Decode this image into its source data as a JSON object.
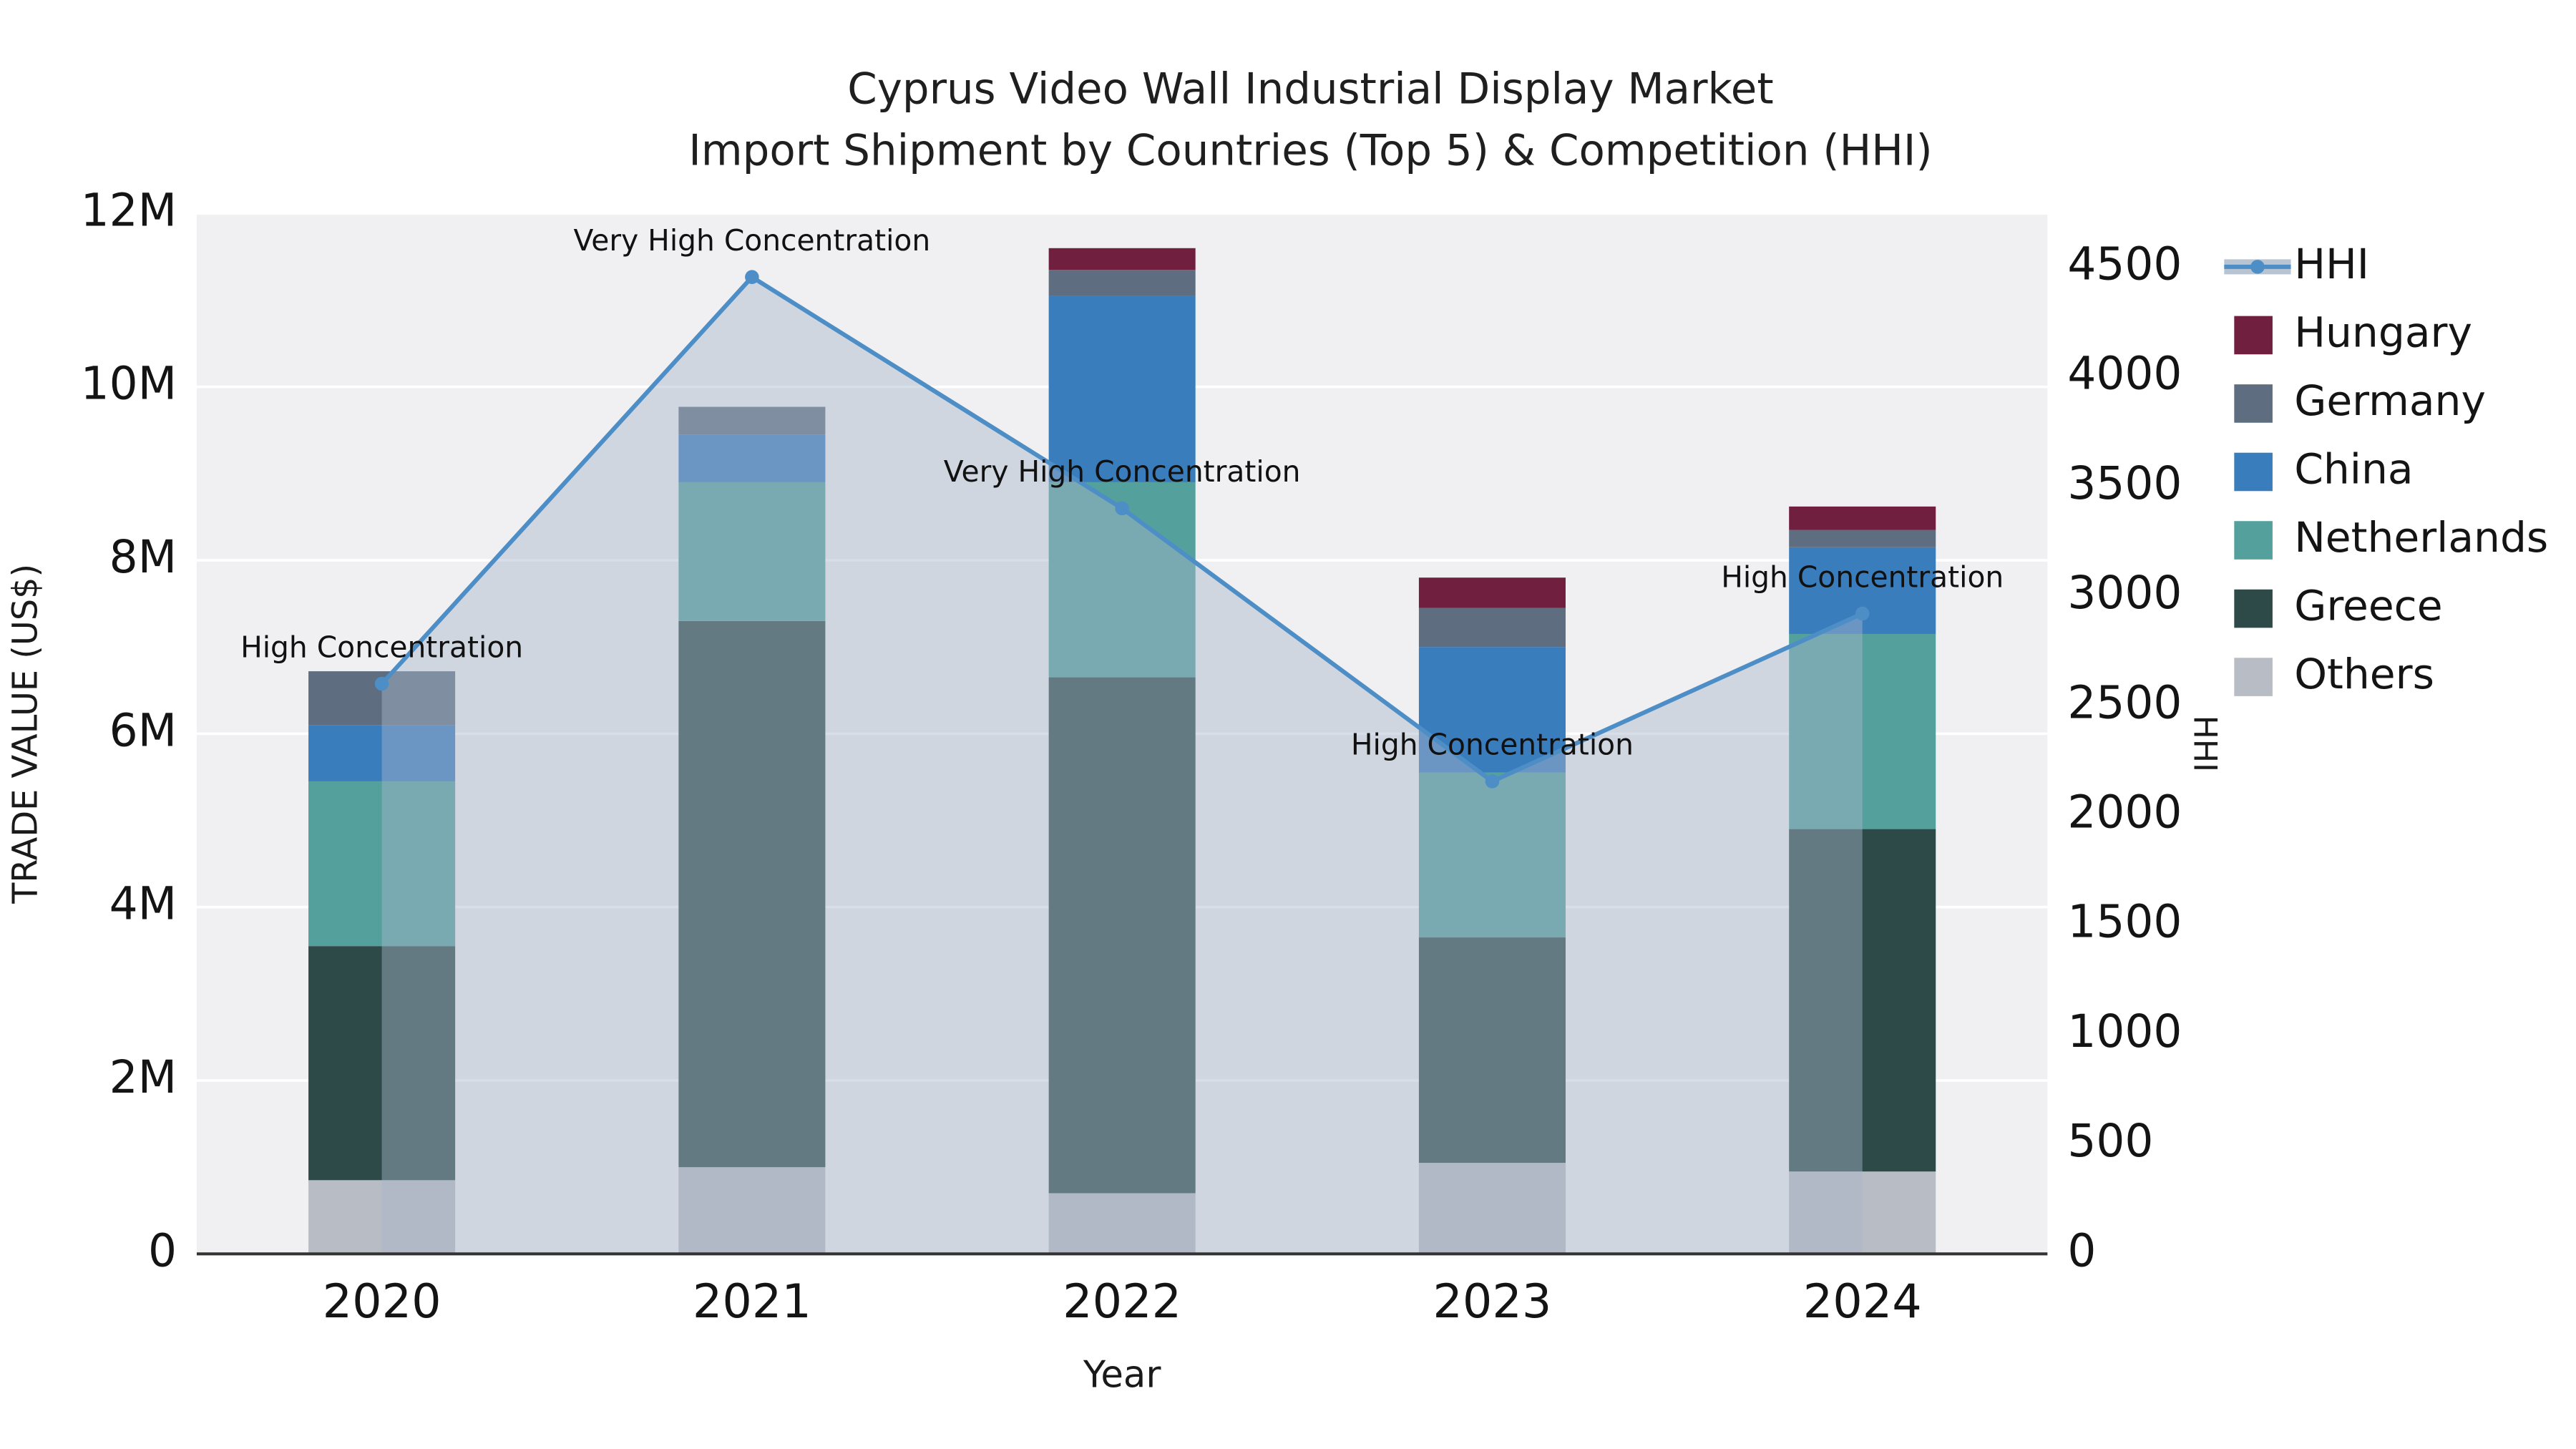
{
  "chart_data": {
    "type": "stacked-bar+line",
    "title": "Cyprus Video Wall Industrial Display Market",
    "subtitle": "Import Shipment by Countries (Top 5) & Competition (HHI)",
    "xlabel": "Year",
    "ylabel_left": "TRADE VALUE (US$)",
    "ylabel_right": "HHI",
    "categories": [
      "2020",
      "2021",
      "2022",
      "2023",
      "2024"
    ],
    "series": [
      {
        "name": "Others",
        "color": "#b8bcc4",
        "values": [
          850000,
          1000000,
          700000,
          1050000,
          950000
        ]
      },
      {
        "name": "Greece",
        "color": "#2d4a49",
        "values": [
          2700000,
          6300000,
          5950000,
          2600000,
          3950000
        ]
      },
      {
        "name": "Netherlands",
        "color": "#53a09d",
        "values": [
          1900000,
          1600000,
          2250000,
          1900000,
          2250000
        ]
      },
      {
        "name": "China",
        "color": "#3a7dbd",
        "values": [
          650000,
          550000,
          2150000,
          1450000,
          1000000
        ]
      },
      {
        "name": "Germany",
        "color": "#5e6e80",
        "values": [
          620000,
          320000,
          300000,
          450000,
          200000
        ]
      },
      {
        "name": "Hungary",
        "color": "#701f3f",
        "values": [
          0,
          0,
          250000,
          350000,
          270000
        ]
      }
    ],
    "line_series": {
      "name": "HHI",
      "color": "#4e8ec6",
      "area_color": "rgba(168,182,202,0.45)",
      "values": [
        2600,
        4455,
        3400,
        2155,
        2920
      ]
    },
    "annotations": [
      "High Concentration",
      "Very High Concentration",
      "Very High Concentration",
      "High Concentration",
      "High Concentration"
    ],
    "left_axis": {
      "min": 0,
      "max": 12000000,
      "tick_step": 2000000,
      "tick_labels": [
        "0",
        "2M",
        "4M",
        "6M",
        "8M",
        "10M",
        "12M"
      ]
    },
    "right_axis": {
      "min": 0,
      "max": 4745,
      "tick_step": 500,
      "tick_labels": [
        "0",
        "500",
        "1000",
        "1500",
        "2000",
        "2500",
        "3000",
        "3500",
        "4000",
        "4500"
      ]
    },
    "legend": [
      {
        "label": "HHI",
        "type": "line",
        "color": "#4e8ec6"
      },
      {
        "label": "Hungary",
        "type": "swatch",
        "color": "#701f3f"
      },
      {
        "label": "Germany",
        "type": "swatch",
        "color": "#5e6e80"
      },
      {
        "label": "China",
        "type": "swatch",
        "color": "#3a7dbd"
      },
      {
        "label": "Netherlands",
        "type": "swatch",
        "color": "#53a09d"
      },
      {
        "label": "Greece",
        "type": "swatch",
        "color": "#2d4a49"
      },
      {
        "label": "Others",
        "type": "swatch",
        "color": "#b8bcc4"
      }
    ]
  }
}
